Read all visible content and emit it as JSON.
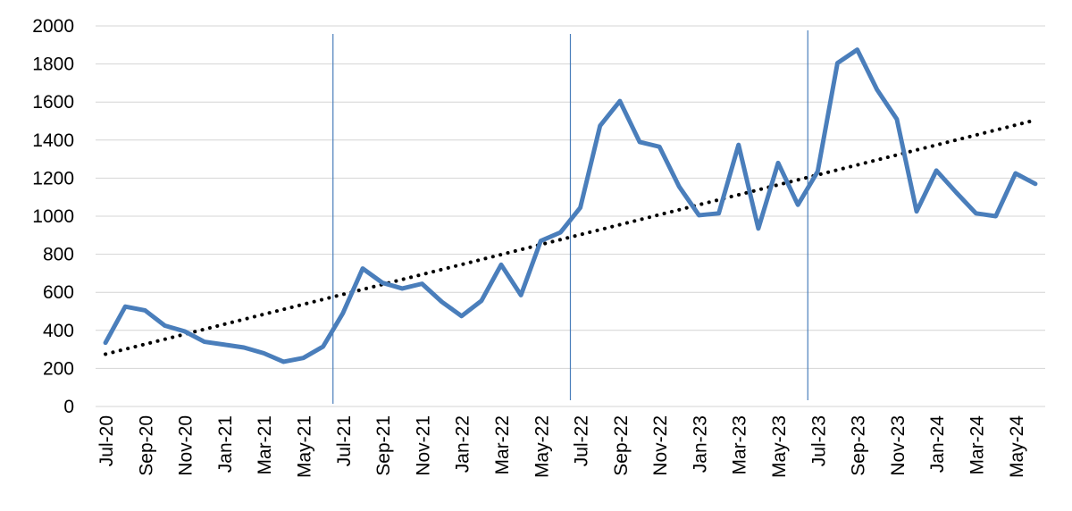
{
  "chart_data": {
    "type": "line",
    "title": "",
    "xlabel": "",
    "ylabel": "",
    "ylim": [
      0,
      2000
    ],
    "yticks": [
      "0",
      "200",
      "400",
      "600",
      "800",
      "1000",
      "1200",
      "1400",
      "1600",
      "1800",
      "2000"
    ],
    "grid": true,
    "x": [
      "Jul-20",
      "Aug-20",
      "Sep-20",
      "Oct-20",
      "Nov-20",
      "Dec-20",
      "Jan-21",
      "Feb-21",
      "Mar-21",
      "Apr-21",
      "May-21",
      "Jun-21",
      "Jul-21",
      "Aug-21",
      "Sep-21",
      "Oct-21",
      "Nov-21",
      "Dec-21",
      "Jan-22",
      "Feb-22",
      "Mar-22",
      "Apr-22",
      "May-22",
      "Jun-22",
      "Jul-22",
      "Aug-22",
      "Sep-22",
      "Oct-22",
      "Nov-22",
      "Dec-22",
      "Jan-23",
      "Feb-23",
      "Mar-23",
      "Apr-23",
      "May-23",
      "Jun-23",
      "Jul-23",
      "Aug-23",
      "Sep-23",
      "Oct-23",
      "Nov-23",
      "Dec-23",
      "Jan-24",
      "Feb-24",
      "Mar-24",
      "Apr-24",
      "May-24",
      "Jun-24"
    ],
    "x_tick_labels": [
      "Jul-20",
      "Sep-20",
      "Nov-20",
      "Jan-21",
      "Mar-21",
      "May-21",
      "Jul-21",
      "Sep-21",
      "Nov-21",
      "Jan-22",
      "Mar-22",
      "May-22",
      "Jul-22",
      "Sep-22",
      "Nov-22",
      "Jan-23",
      "Mar-23",
      "May-23",
      "Jul-23",
      "Sep-23",
      "Nov-23",
      "Jan-24",
      "Mar-24",
      "May-24"
    ],
    "series": [
      {
        "color": "#4a7ebb",
        "values": [
          335,
          525,
          505,
          425,
          395,
          340,
          325,
          310,
          280,
          235,
          255,
          315,
          490,
          725,
          650,
          620,
          645,
          550,
          475,
          555,
          745,
          585,
          870,
          915,
          1045,
          1475,
          1605,
          1390,
          1365,
          1155,
          1005,
          1015,
          1375,
          935,
          1280,
          1060,
          1235,
          1805,
          1875,
          1665,
          1510,
          1025,
          1240,
          1125,
          1015,
          1000,
          1225,
          1170
        ]
      }
    ],
    "trendline": {
      "type": "linear",
      "style": "dotted",
      "color": "#000000",
      "start": 275,
      "end": 1505
    },
    "vertical_markers": {
      "color": "#4a7ebb",
      "x": [
        "Jul-21",
        "Jul-22",
        "Jul-23"
      ]
    }
  }
}
